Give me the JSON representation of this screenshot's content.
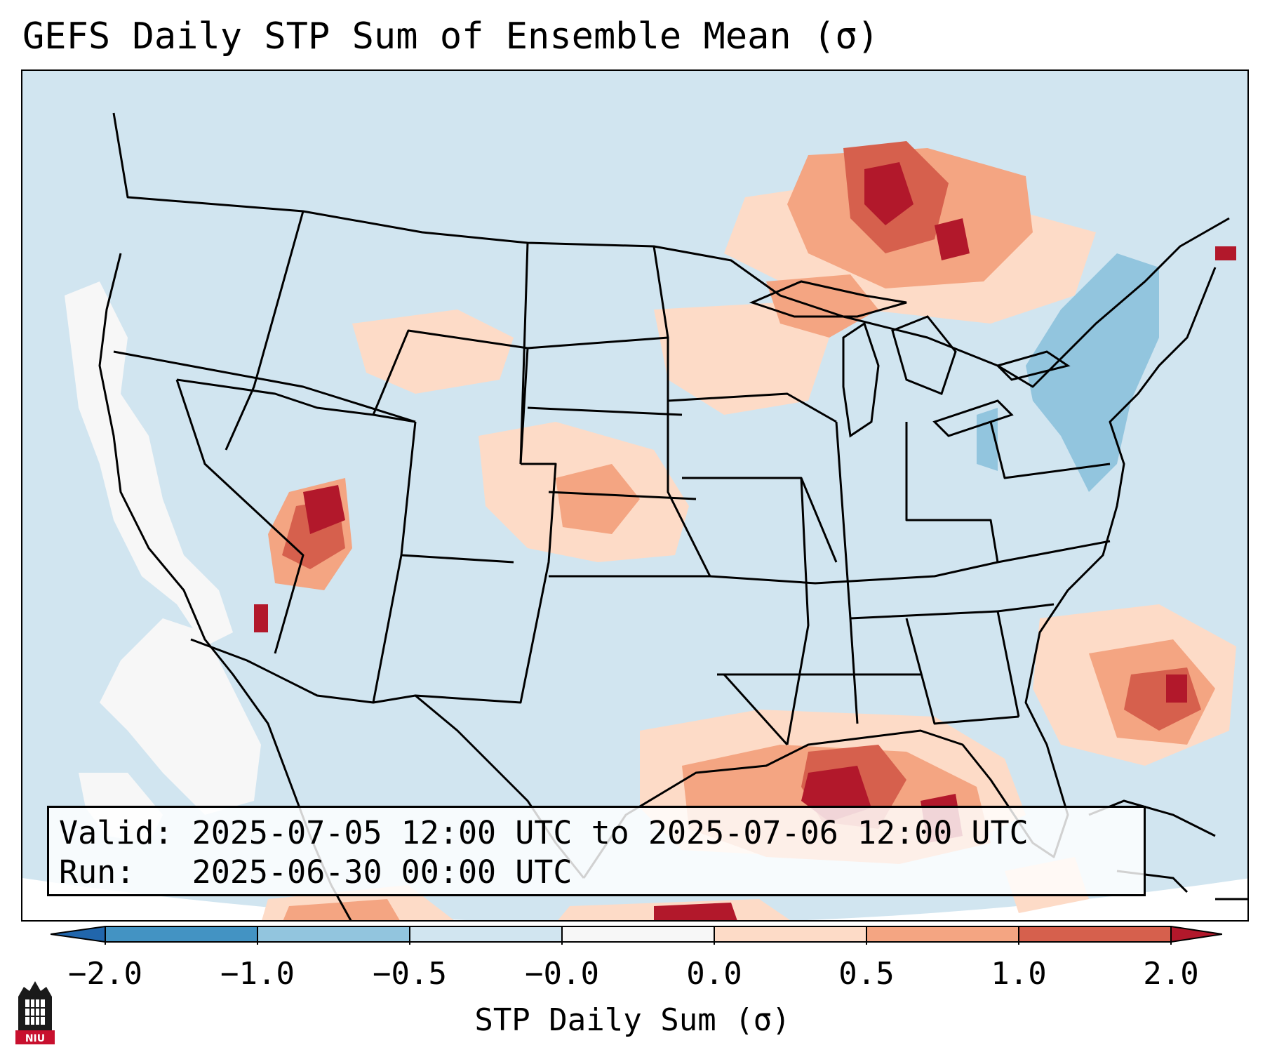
{
  "title": "GEFS Daily STP Sum of Ensemble Mean (σ)",
  "info": {
    "valid_line": "Valid: 2025-07-05 12:00 UTC to 2025-07-06 12:00 UTC",
    "run_line": "Run:   2025-06-30 00:00 UTC"
  },
  "colorbar": {
    "label": "STP Daily Sum (σ)",
    "ticks": [
      "−2.0",
      "−1.0",
      "−0.5",
      "−0.0",
      "0.0",
      "0.5",
      "1.0",
      "2.0"
    ],
    "colors": [
      "#4393c3",
      "#92c5de",
      "#d1e5f0",
      "#f7f7f7",
      "#fddbc7",
      "#f4a582",
      "#d6604d"
    ],
    "extend_min_color": "#2166ac",
    "extend_max_color": "#b2182b"
  },
  "map": {
    "background_color": "#d1e5f0",
    "regions": [
      {
        "name": "central-plains-positive",
        "level": 1
      },
      {
        "name": "great-lakes-ontario-positive",
        "level": 2
      },
      {
        "name": "gulf-of-mexico-positive",
        "level": 3
      },
      {
        "name": "four-corners-positive",
        "level": 3
      },
      {
        "name": "atlantic-positive",
        "level": 2
      },
      {
        "name": "new-england-negative",
        "level": -1
      },
      {
        "name": "pacific-coast-near-zero",
        "level": 0
      }
    ]
  },
  "logo": {
    "text": "NIU"
  }
}
